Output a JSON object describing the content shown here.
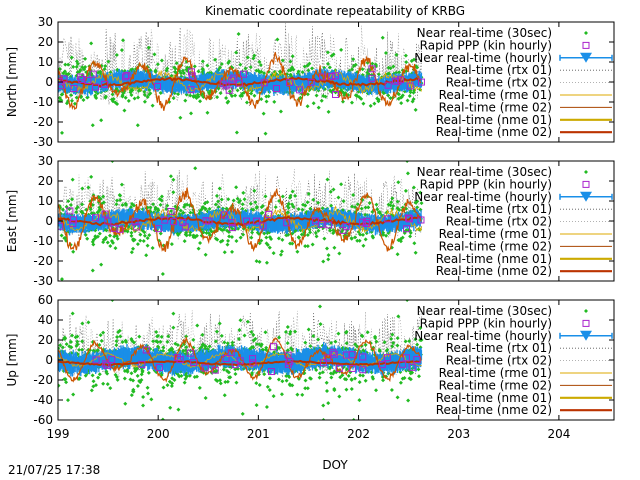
{
  "title": "Kinematic coordinate repeatability of KRBG",
  "timestamp": "21/07/25 17:38",
  "chart_data": {
    "type": "line",
    "title": "Kinematic coordinate repeatability of KRBG",
    "xlabel": "DOY",
    "xlim": [
      199,
      204.55
    ],
    "xticks": [
      199,
      200,
      201,
      202,
      203,
      204
    ],
    "data_end_doy": 202.63,
    "grid": false,
    "legend_placement": "top-right",
    "legend": [
      {
        "label": "Near real-time (30sec)",
        "style": "green-diamond-points",
        "color": "#22bb22"
      },
      {
        "label": "Rapid PPP (kin hourly)",
        "style": "purple-open-square",
        "color": "#aa22cc"
      },
      {
        "label": "Near real-time (hourly)",
        "style": "blue-triangle-errorbar",
        "color": "#1a8fe8"
      },
      {
        "label": "Real-time (rtx 01)",
        "style": "dotted-line",
        "color": "#555555"
      },
      {
        "label": "Real-time (rtx 02)",
        "style": "dotted-line",
        "color": "#999999"
      },
      {
        "label": "Real-time (rme 01)",
        "style": "thin-line",
        "color": "#ddaa00"
      },
      {
        "label": "Real-time (rme 02)",
        "style": "thin-line",
        "color": "#aa4400"
      },
      {
        "label": "Real-time (nme 01)",
        "style": "thick-line",
        "color": "#ccaa00"
      },
      {
        "label": "Real-time (nme 02)",
        "style": "thick-line",
        "color": "#bb3300"
      }
    ],
    "panels": [
      {
        "name": "north",
        "ylabel": "North [mm]",
        "ylim": [
          -30,
          30
        ],
        "yticks": [
          30,
          20,
          10,
          0,
          -10,
          -20,
          -30
        ],
        "nrt30_spread": 7,
        "hourly_spread": 2.5,
        "rtx_peak": 28,
        "rme02_amp": 12
      },
      {
        "name": "east",
        "ylabel": "East [mm]",
        "ylim": [
          -30,
          30
        ],
        "yticks": [
          30,
          20,
          10,
          0,
          -10,
          -20,
          -30
        ],
        "nrt30_spread": 8,
        "hourly_spread": 2.5,
        "rtx_peak": 26,
        "rme02_amp": 14
      },
      {
        "name": "up",
        "ylabel": "Up [mm]",
        "ylim": [
          -60,
          60
        ],
        "yticks": [
          60,
          40,
          20,
          0,
          -20,
          -40,
          -60
        ],
        "nrt30_spread": 18,
        "hourly_spread": 6,
        "rtx_peak": 50,
        "rme02_amp": 20
      }
    ]
  }
}
